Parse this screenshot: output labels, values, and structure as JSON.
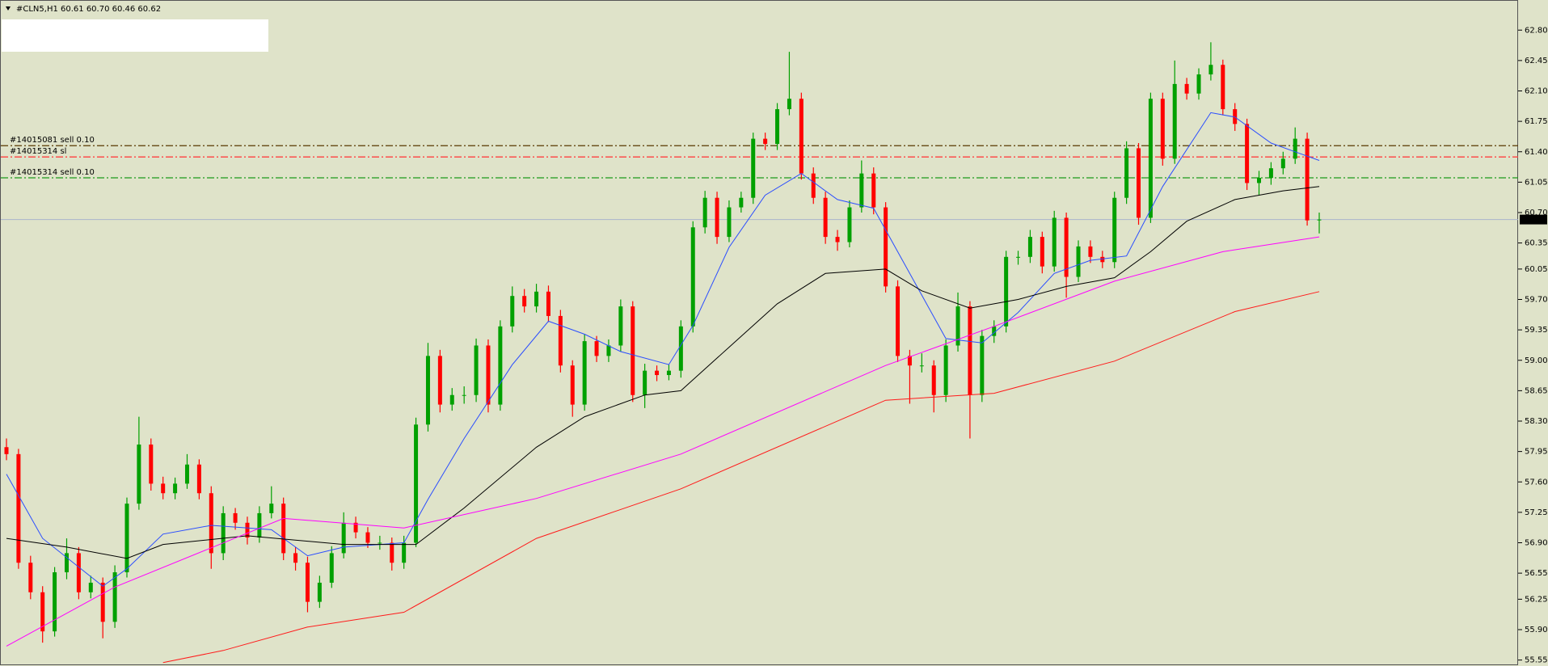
{
  "chart_data": {
    "type": "candlestick",
    "header": "#CLN5,H1  60.61 60.70 60.46 60.62",
    "up_color": "#00a000",
    "down_color": "#ff0000",
    "ylim": [
      55.5,
      63.1
    ],
    "yticks": [
      {
        "value": 62.8,
        "label": "62.80"
      },
      62.45,
      {
        "value": 62.1,
        "label": "62.10"
      },
      61.75,
      {
        "value": 61.4,
        "label": "61.40"
      },
      61.05,
      {
        "value": 60.7,
        "label": "60.70"
      },
      60.35,
      60.05,
      {
        "value": 59.7,
        "label": "59.70"
      },
      59.35,
      {
        "value": 59.0,
        "label": "59.00"
      },
      58.65,
      {
        "value": 58.3,
        "label": "58.30"
      },
      57.95,
      {
        "value": 57.6,
        "label": "57.60"
      },
      57.25,
      {
        "value": 56.9,
        "label": "56.90"
      },
      56.55,
      56.25,
      {
        "value": 55.9,
        "label": "55.90"
      },
      55.55
    ],
    "ohlc": [
      [
        58.0,
        58.1,
        57.85,
        57.92
      ],
      [
        57.92,
        57.98,
        56.6,
        56.67
      ],
      [
        56.67,
        56.75,
        56.25,
        56.33
      ],
      [
        56.33,
        56.4,
        55.75,
        55.88
      ],
      [
        55.88,
        56.62,
        55.82,
        56.56
      ],
      [
        56.56,
        56.95,
        56.48,
        56.78
      ],
      [
        56.78,
        56.85,
        56.25,
        56.33
      ],
      [
        56.33,
        56.52,
        56.26,
        56.44
      ],
      [
        56.44,
        56.5,
        55.8,
        55.99
      ],
      [
        55.99,
        56.64,
        55.92,
        56.56
      ],
      [
        56.56,
        57.42,
        56.5,
        57.35
      ],
      [
        57.35,
        58.35,
        57.28,
        58.03
      ],
      [
        58.03,
        58.1,
        57.5,
        57.58
      ],
      [
        57.58,
        57.66,
        57.4,
        57.47
      ],
      [
        57.47,
        57.65,
        57.4,
        57.58
      ],
      [
        57.58,
        57.92,
        57.52,
        57.8
      ],
      [
        57.8,
        57.86,
        57.4,
        57.47
      ],
      [
        57.47,
        57.55,
        56.6,
        56.78
      ],
      [
        56.78,
        57.32,
        56.7,
        57.24
      ],
      [
        57.24,
        57.3,
        57.05,
        57.13
      ],
      [
        57.13,
        57.2,
        56.88,
        56.96
      ],
      [
        56.96,
        57.32,
        56.9,
        57.24
      ],
      [
        57.24,
        57.55,
        57.18,
        57.35
      ],
      [
        57.35,
        57.42,
        56.7,
        56.78
      ],
      [
        56.78,
        56.85,
        56.58,
        56.67
      ],
      [
        56.67,
        56.74,
        56.1,
        56.22
      ],
      [
        56.22,
        56.52,
        56.15,
        56.44
      ],
      [
        56.44,
        56.86,
        56.38,
        56.78
      ],
      [
        56.78,
        57.25,
        56.72,
        57.13
      ],
      [
        57.13,
        57.2,
        56.95,
        57.02
      ],
      [
        57.02,
        57.08,
        56.84,
        56.9
      ],
      [
        56.9,
        56.98,
        56.82,
        56.9
      ],
      [
        56.9,
        56.96,
        56.58,
        56.67
      ],
      [
        56.67,
        56.98,
        56.6,
        56.9
      ],
      [
        56.9,
        58.34,
        56.85,
        58.26
      ],
      [
        58.26,
        59.2,
        58.18,
        59.05
      ],
      [
        59.05,
        59.12,
        58.4,
        58.49
      ],
      [
        58.49,
        58.68,
        58.42,
        58.6
      ],
      [
        58.6,
        58.7,
        58.5,
        58.6
      ],
      [
        58.6,
        59.25,
        58.52,
        59.17
      ],
      [
        59.17,
        59.24,
        58.4,
        58.49
      ],
      [
        58.49,
        59.46,
        58.42,
        59.39
      ],
      [
        59.39,
        59.85,
        59.32,
        59.74
      ],
      [
        59.74,
        59.82,
        59.55,
        59.62
      ],
      [
        59.62,
        59.88,
        59.55,
        59.79
      ],
      [
        59.79,
        59.86,
        59.44,
        59.51
      ],
      [
        59.51,
        59.58,
        58.86,
        58.94
      ],
      [
        58.94,
        59.0,
        58.35,
        58.49
      ],
      [
        58.49,
        59.3,
        58.42,
        59.22
      ],
      [
        59.22,
        59.28,
        58.98,
        59.05
      ],
      [
        59.05,
        59.24,
        58.98,
        59.17
      ],
      [
        59.17,
        59.7,
        59.1,
        59.62
      ],
      [
        59.62,
        59.68,
        58.52,
        58.6
      ],
      [
        58.6,
        58.96,
        58.45,
        58.88
      ],
      [
        58.88,
        58.94,
        58.76,
        58.83
      ],
      [
        58.83,
        58.95,
        58.77,
        58.88
      ],
      [
        58.88,
        59.46,
        58.8,
        59.39
      ],
      [
        59.39,
        60.6,
        59.32,
        60.53
      ],
      [
        60.53,
        60.95,
        60.46,
        60.87
      ],
      [
        60.87,
        60.94,
        60.34,
        60.42
      ],
      [
        60.42,
        60.84,
        60.36,
        60.76
      ],
      [
        60.76,
        60.94,
        60.7,
        60.87
      ],
      [
        60.87,
        61.62,
        60.8,
        61.55
      ],
      [
        61.55,
        61.62,
        61.42,
        61.49
      ],
      [
        61.49,
        61.96,
        61.42,
        61.89
      ],
      [
        61.89,
        62.55,
        61.82,
        62.01
      ],
      [
        62.01,
        62.08,
        61.08,
        61.15
      ],
      [
        61.15,
        61.22,
        60.8,
        60.87
      ],
      [
        60.87,
        60.94,
        60.34,
        60.42
      ],
      [
        60.42,
        60.5,
        60.26,
        60.36
      ],
      [
        60.36,
        60.84,
        60.3,
        60.76
      ],
      [
        60.76,
        61.3,
        60.7,
        61.15
      ],
      [
        61.15,
        61.22,
        60.68,
        60.76
      ],
      [
        60.76,
        60.82,
        59.78,
        59.85
      ],
      [
        59.85,
        59.92,
        58.98,
        59.05
      ],
      [
        59.05,
        59.12,
        58.5,
        58.94
      ],
      [
        58.94,
        59.08,
        58.86,
        58.94
      ],
      [
        58.94,
        59.0,
        58.4,
        58.6
      ],
      [
        58.6,
        59.24,
        58.52,
        59.17
      ],
      [
        59.17,
        59.78,
        59.1,
        59.62
      ],
      [
        59.62,
        59.68,
        58.1,
        58.6
      ],
      [
        58.6,
        59.35,
        58.52,
        59.28
      ],
      [
        59.28,
        59.46,
        59.2,
        59.39
      ],
      [
        59.39,
        60.26,
        59.32,
        60.19
      ],
      [
        60.19,
        60.26,
        60.1,
        60.19
      ],
      [
        60.19,
        60.5,
        60.12,
        60.42
      ],
      [
        60.42,
        60.48,
        60.0,
        60.08
      ],
      [
        60.08,
        60.72,
        60.02,
        60.64
      ],
      [
        60.64,
        60.7,
        59.72,
        59.96
      ],
      [
        59.96,
        60.38,
        59.9,
        60.31
      ],
      [
        60.31,
        60.38,
        60.12,
        60.19
      ],
      [
        60.19,
        60.26,
        60.06,
        60.13
      ],
      [
        60.13,
        60.94,
        60.06,
        60.87
      ],
      [
        60.87,
        61.52,
        60.8,
        61.44
      ],
      [
        61.44,
        61.5,
        60.56,
        60.64
      ],
      [
        60.64,
        62.08,
        60.58,
        62.01
      ],
      [
        62.01,
        62.08,
        61.24,
        61.32
      ],
      [
        61.32,
        62.45,
        61.26,
        62.18
      ],
      [
        62.18,
        62.25,
        62.0,
        62.07
      ],
      [
        62.07,
        62.36,
        62.0,
        62.29
      ],
      [
        62.29,
        62.66,
        62.22,
        62.4
      ],
      [
        62.4,
        62.46,
        61.82,
        61.89
      ],
      [
        61.89,
        61.96,
        61.64,
        61.72
      ],
      [
        61.72,
        61.78,
        60.96,
        61.04
      ],
      [
        61.04,
        61.18,
        60.9,
        61.1
      ],
      [
        61.1,
        61.28,
        61.02,
        61.21
      ],
      [
        61.21,
        61.4,
        61.14,
        61.32
      ],
      [
        61.32,
        61.68,
        61.26,
        61.55
      ],
      [
        61.55,
        61.62,
        60.55,
        60.61
      ],
      [
        60.61,
        60.7,
        60.46,
        60.62
      ]
    ],
    "lines": [
      {
        "color": "#2a4dff",
        "x": [
          0,
          3,
          8,
          10,
          13,
          17,
          22,
          25,
          28,
          33,
          35,
          38,
          42,
          45,
          48,
          51,
          55,
          57,
          60,
          63,
          66,
          69,
          72,
          75,
          78,
          81,
          84,
          87,
          90,
          93,
          96,
          100,
          102,
          105,
          107,
          109
        ],
        "values": [
          57.69,
          56.95,
          56.4,
          56.6,
          57.0,
          57.1,
          57.05,
          56.75,
          56.85,
          56.9,
          57.4,
          58.1,
          58.95,
          59.45,
          59.3,
          59.1,
          58.95,
          59.4,
          60.3,
          60.9,
          61.15,
          60.85,
          60.75,
          60.0,
          59.25,
          59.2,
          59.55,
          60.0,
          60.15,
          60.2,
          61.0,
          61.85,
          61.8,
          61.5,
          61.4,
          61.3
        ]
      },
      {
        "color": "#000000",
        "x": [
          0,
          5,
          10,
          13,
          20,
          28,
          34,
          38,
          44,
          48,
          53,
          56,
          60,
          64,
          68,
          73,
          76,
          80,
          84,
          88,
          92,
          95,
          98,
          102,
          106,
          109
        ],
        "values": [
          56.95,
          56.85,
          56.72,
          56.88,
          56.98,
          56.88,
          56.88,
          57.3,
          58.0,
          58.35,
          58.6,
          58.65,
          59.15,
          59.65,
          60.0,
          60.05,
          59.8,
          59.6,
          59.7,
          59.85,
          59.95,
          60.25,
          60.6,
          60.85,
          60.95,
          61.0
        ]
      },
      {
        "color": "#ff00ff",
        "x": [
          0,
          9,
          23,
          33,
          44,
          56,
          73,
          82,
          92,
          101,
          109
        ],
        "values": [
          55.71,
          56.39,
          57.18,
          57.07,
          57.41,
          57.92,
          58.94,
          59.39,
          59.91,
          60.25,
          60.42
        ]
      },
      {
        "color": "#ff1a1a",
        "x": [
          13,
          18,
          25,
          33,
          44,
          56,
          73,
          82,
          92,
          102,
          109
        ],
        "values": [
          55.52,
          55.66,
          55.93,
          56.1,
          56.95,
          57.52,
          58.54,
          58.62,
          58.99,
          59.56,
          59.79
        ]
      }
    ],
    "levels": [
      {
        "label": "#14015081 sell 0.10",
        "value": 61.47,
        "color": "#5a3a00"
      },
      {
        "label": "#14015314 sl",
        "value": 61.34,
        "color": "#ff4040"
      },
      {
        "label": "#14015314 sell 0.10",
        "value": 61.1,
        "color": "#1c9a1c"
      }
    ],
    "last_price": 60.62
  }
}
